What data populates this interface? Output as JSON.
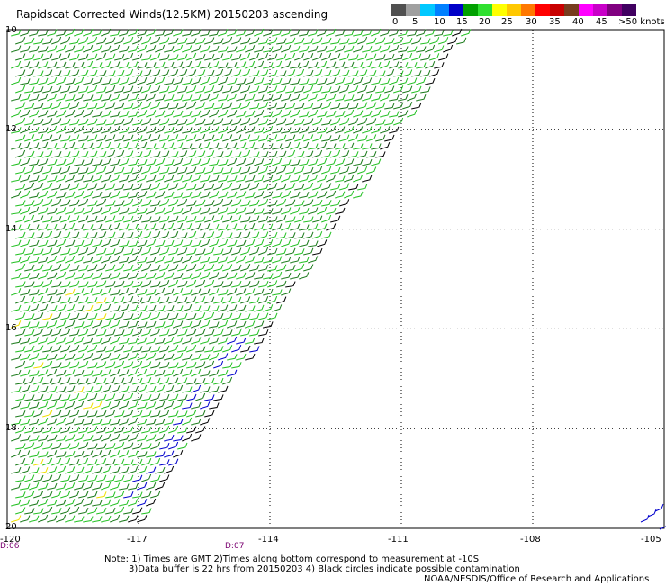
{
  "title": "Rapidscat Corrected Winds(12.5KM) 20150203 ascending",
  "legend": {
    "colors": [
      "#505050",
      "#a0a0a0",
      "#00c8ff",
      "#0080ff",
      "#0000c8",
      "#00a000",
      "#30e030",
      "#ffff00",
      "#ffc800",
      "#ff7800",
      "#ff0000",
      "#c80000",
      "#783c1e",
      "#ff00ff",
      "#c800c8",
      "#800080",
      "#400060"
    ],
    "labels": [
      "0",
      "5",
      "10",
      "15",
      "20",
      "25",
      "30",
      "35",
      "40",
      "45",
      ">50 knots"
    ]
  },
  "axes": {
    "lat_labels": [
      "10",
      "12",
      "14",
      "16",
      "18",
      "20"
    ],
    "lon_labels": [
      "-120",
      "-117",
      "-114",
      "-111",
      "-108",
      "-105"
    ],
    "lat_range": [
      10,
      20
    ],
    "lon_range": [
      -120,
      -105
    ],
    "grid": true
  },
  "time_labels": [
    "D:06",
    "D:07"
  ],
  "notes": {
    "line1": "Note: 1) Times are GMT 2)Times along bottom correspond to measurement at -10S",
    "line2": "3)Data buffer is 22 hrs from 20150203 4) Black circles indicate possible contamination",
    "line3": "NOAA/NESDIS/Office of Research and Applications"
  },
  "barb_colors": {
    "dark_green": "#1a7a1a",
    "green": "#22c022",
    "blue": "#0000cc",
    "yellow": "#f0e000",
    "black": "#000000"
  }
}
